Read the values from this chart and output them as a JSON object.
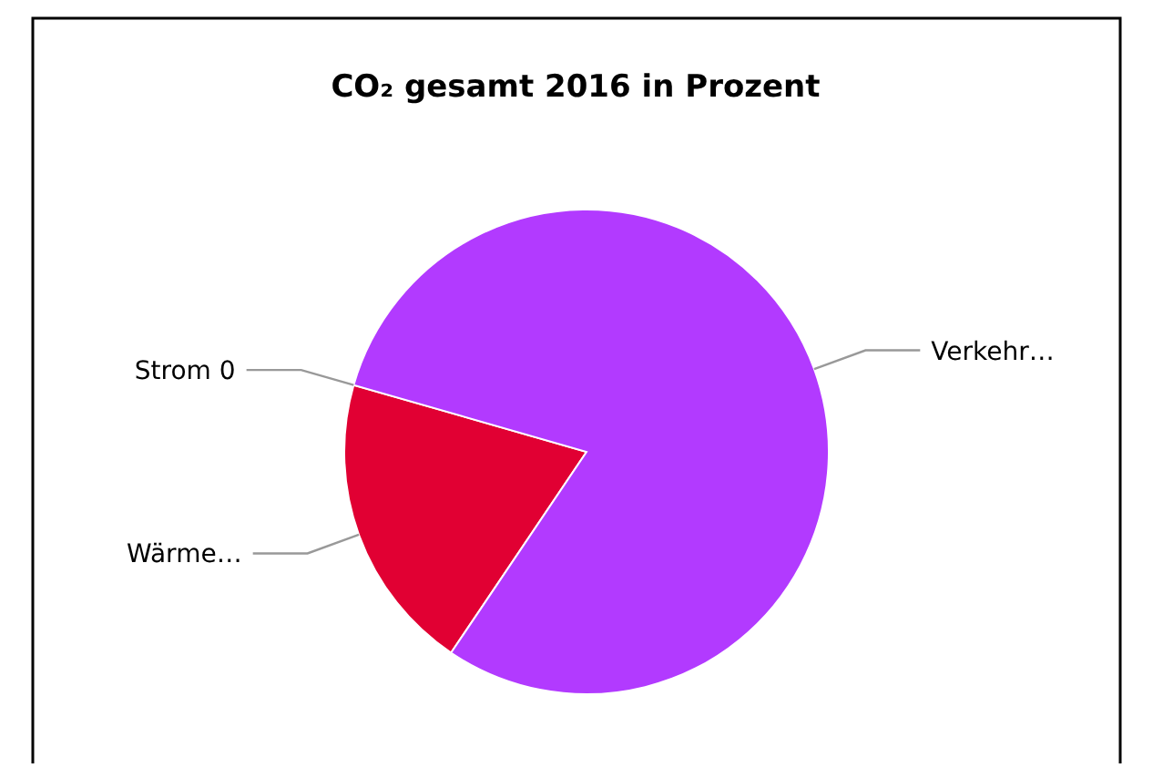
{
  "chart_data": {
    "type": "pie",
    "title": "CO₂ gesamt 2016 in Prozent",
    "categories": [
      "Strom 0",
      "Wärme…",
      "Verkehr…"
    ],
    "values": [
      0,
      20,
      80
    ],
    "colors": [
      "#b23aff",
      "#e10033",
      "#b23aff"
    ]
  }
}
